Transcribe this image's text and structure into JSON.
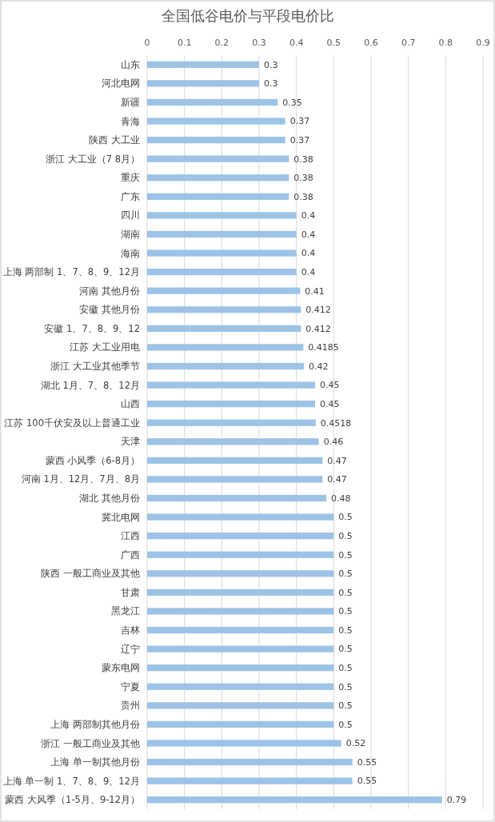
{
  "chart_data": {
    "type": "bar",
    "orientation": "horizontal",
    "title": "全国低谷电价与平段电价比",
    "categories": [
      "山东",
      "河北电网",
      "新疆",
      "青海",
      "陕西 大工业",
      "浙江 大工业（7 8月）",
      "重庆",
      "广东",
      "四川",
      "湖南",
      "海南",
      "上海 两部制 1、7、8、9、12月",
      "河南 其他月份",
      "安徽 其他月份",
      "安徽 1、7、8、9、12",
      "江苏 大工业用电",
      "浙江 大工业其他季节",
      "湖北 1月、7、8、12月",
      "山西",
      "江苏 100千伏安及以上普通工业",
      "天津",
      "蒙西 小风季（6-8月）",
      "河南 1月、12月、7月、8月",
      "湖北 其他月份",
      "冀北电网",
      "江西",
      "广西",
      "陕西 一般工商业及其他",
      "甘肃",
      "黑龙江",
      "吉林",
      "辽宁",
      "蒙东电网",
      "宁夏",
      "贵州",
      "上海 两部制其他月份",
      "浙江 一般工商业及其他",
      "上海 单一制其他月份",
      "上海 单一制 1、7、8、9、12月",
      "蒙西 大风季（1-5月、9-12月）"
    ],
    "values": [
      0.3,
      0.3,
      0.35,
      0.37,
      0.37,
      0.38,
      0.38,
      0.38,
      0.4,
      0.4,
      0.4,
      0.4,
      0.41,
      0.412,
      0.412,
      0.4185,
      0.42,
      0.45,
      0.45,
      0.4518,
      0.46,
      0.47,
      0.47,
      0.48,
      0.5,
      0.5,
      0.5,
      0.5,
      0.5,
      0.5,
      0.5,
      0.5,
      0.5,
      0.5,
      0.5,
      0.5,
      0.52,
      0.55,
      0.55,
      0.79
    ],
    "color": "#9dc3e6",
    "xlim": [
      0,
      0.9
    ],
    "xticks": [
      0,
      0.1,
      0.2,
      0.3,
      0.4,
      0.5,
      0.6,
      0.7,
      0.8,
      0.9
    ],
    "grid": "x",
    "data_labels": true
  }
}
